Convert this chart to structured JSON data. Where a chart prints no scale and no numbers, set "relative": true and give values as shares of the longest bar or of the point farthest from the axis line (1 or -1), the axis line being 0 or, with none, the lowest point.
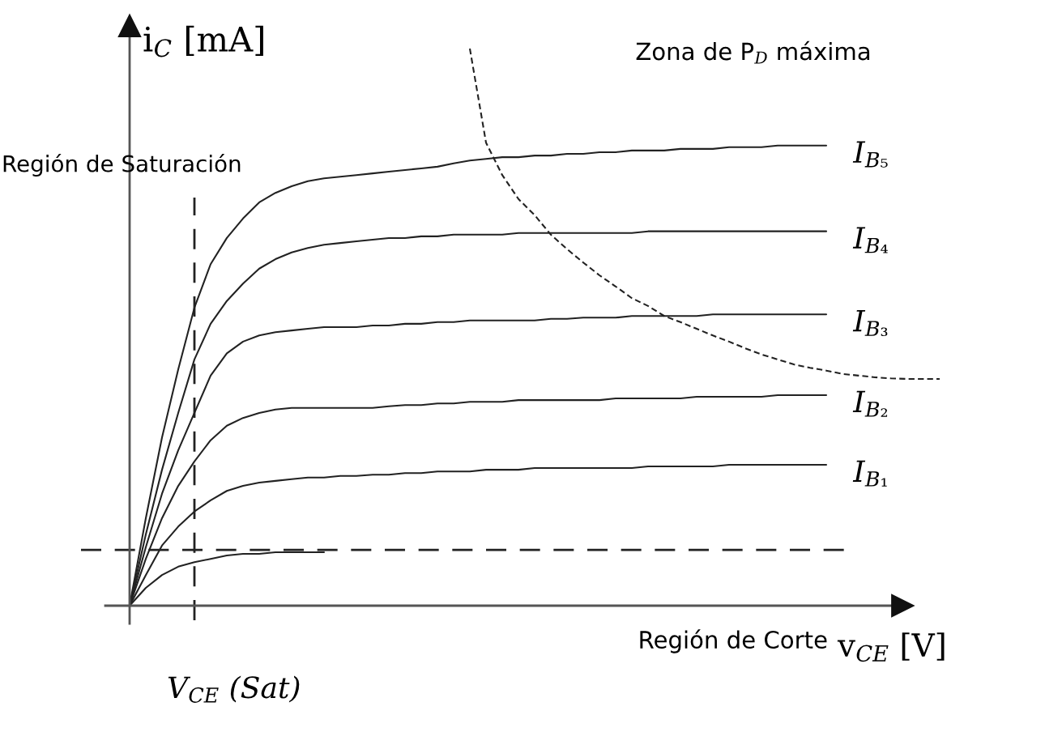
{
  "chart_data": {
    "type": "line",
    "relative": true,
    "line_style": "solid",
    "xlabel": "v$_{CE}$ [V]",
    "ylabel": "i$_{C}$ [mA]",
    "categories": [
      null,
      null,
      null,
      null,
      null,
      null,
      null,
      null,
      null,
      null,
      null,
      null,
      null,
      null,
      null,
      null,
      null,
      null,
      null,
      null,
      null,
      null,
      null,
      null,
      null,
      null,
      null,
      null,
      null,
      null,
      null,
      null,
      null,
      null,
      null,
      null,
      null,
      null,
      null,
      null,
      null,
      null,
      null,
      null,
      null,
      null,
      null,
      null,
      null,
      null,
      null
    ],
    "series": [
      {
        "name": "I$_{B₅}$",
        "color": "#222222",
        "values": [
          0,
          0.157,
          0.302,
          0.424,
          0.535,
          0.613,
          0.66,
          0.695,
          0.724,
          0.741,
          0.753,
          0.762,
          0.767,
          0.77,
          0.773,
          0.776,
          0.779,
          0.782,
          0.785,
          0.788,
          0.794,
          0.799,
          0.802,
          0.805,
          0.805,
          0.808,
          0.808,
          0.811,
          0.811,
          0.814,
          0.814,
          0.817,
          0.817,
          0.817,
          0.82,
          0.82,
          0.82,
          0.823,
          0.823,
          0.823,
          0.826,
          0.826,
          0.826,
          0.826,
          null,
          null,
          null,
          null,
          null,
          null,
          null
        ]
      },
      {
        "name": "I$_{B₄}$",
        "color": "#222222",
        "values": [
          0,
          0.128,
          0.244,
          0.346,
          0.442,
          0.506,
          0.547,
          0.578,
          0.605,
          0.622,
          0.634,
          0.642,
          0.648,
          0.651,
          0.654,
          0.657,
          0.66,
          0.66,
          0.663,
          0.663,
          0.666,
          0.666,
          0.666,
          0.666,
          0.669,
          0.669,
          0.669,
          0.669,
          0.669,
          0.669,
          0.669,
          0.669,
          0.672,
          0.672,
          0.672,
          0.672,
          0.672,
          0.672,
          0.672,
          0.672,
          0.672,
          0.672,
          0.672,
          0.672,
          null,
          null,
          null,
          null,
          null,
          null,
          null
        ]
      },
      {
        "name": "I$_{B₃}$",
        "color": "#222222",
        "values": [
          0,
          0.105,
          0.201,
          0.279,
          0.346,
          0.413,
          0.453,
          0.474,
          0.485,
          0.491,
          0.494,
          0.497,
          0.5,
          0.5,
          0.5,
          0.503,
          0.503,
          0.506,
          0.506,
          0.509,
          0.509,
          0.512,
          0.512,
          0.512,
          0.512,
          0.512,
          0.515,
          0.515,
          0.517,
          0.517,
          0.517,
          0.52,
          0.52,
          0.52,
          0.52,
          0.52,
          0.523,
          0.523,
          0.523,
          0.523,
          0.523,
          0.523,
          0.523,
          0.523,
          null,
          null,
          null,
          null,
          null,
          null,
          null
        ]
      },
      {
        "name": "I$_{B₂}$",
        "color": "#222222",
        "values": [
          0,
          0.084,
          0.157,
          0.215,
          0.259,
          0.297,
          0.323,
          0.337,
          0.346,
          0.352,
          0.355,
          0.355,
          0.355,
          0.355,
          0.355,
          0.355,
          0.358,
          0.36,
          0.36,
          0.363,
          0.363,
          0.366,
          0.366,
          0.366,
          0.369,
          0.369,
          0.369,
          0.369,
          0.369,
          0.369,
          0.372,
          0.372,
          0.372,
          0.372,
          0.372,
          0.375,
          0.375,
          0.375,
          0.375,
          0.375,
          0.378,
          0.378,
          0.378,
          0.378,
          null,
          null,
          null,
          null,
          null,
          null,
          null
        ]
      },
      {
        "name": "I$_{B₁}$",
        "color": "#222222",
        "values": [
          0,
          0.055,
          0.108,
          0.142,
          0.169,
          0.189,
          0.206,
          0.215,
          0.221,
          0.224,
          0.227,
          0.23,
          0.23,
          0.233,
          0.233,
          0.235,
          0.235,
          0.238,
          0.238,
          0.241,
          0.241,
          0.241,
          0.244,
          0.244,
          0.244,
          0.247,
          0.247,
          0.247,
          0.247,
          0.247,
          0.247,
          0.247,
          0.25,
          0.25,
          0.25,
          0.25,
          0.25,
          0.253,
          0.253,
          0.253,
          0.253,
          0.253,
          0.253,
          0.253,
          null,
          null,
          null,
          null,
          null,
          null,
          null
        ]
      },
      {
        "color": "#222222",
        "values": [
          0,
          0.032,
          0.055,
          0.07,
          0.078,
          0.084,
          0.09,
          0.093,
          0.093,
          0.096,
          0.096,
          0.096,
          0.096,
          null,
          null,
          null,
          null,
          null,
          null,
          null,
          null,
          null,
          null,
          null,
          null,
          null,
          null,
          null,
          null,
          null,
          null,
          null,
          null,
          null,
          null,
          null,
          null,
          null,
          null,
          null,
          null,
          null,
          null,
          null,
          null,
          null,
          null,
          null,
          null,
          null,
          null
        ]
      },
      {
        "color": "#222222",
        "line_style": "dashed",
        "values": [
          null,
          null,
          null,
          null,
          null,
          null,
          null,
          null,
          null,
          null,
          null,
          null,
          null,
          null,
          null,
          null,
          null,
          null,
          null,
          null,
          null,
          1.0,
          0.831,
          0.773,
          0.73,
          0.701,
          0.666,
          0.64,
          0.616,
          0.593,
          0.573,
          0.552,
          0.538,
          0.52,
          0.509,
          0.497,
          0.485,
          0.474,
          0.462,
          0.451,
          0.442,
          0.433,
          0.427,
          0.422,
          0.416,
          0.413,
          0.41,
          0.408,
          0.407,
          0.407,
          0.407
        ]
      }
    ],
    "ref_lines": [
      {
        "axis": "y",
        "value": 0.1,
        "color": "#222222",
        "line_style": "dashed"
      }
    ],
    "annotations": [
      "Región de Saturación",
      "Zona de P$_{D}$ máxima",
      "Región de Corte",
      "V$_{CE}$ (Sat)"
    ]
  }
}
